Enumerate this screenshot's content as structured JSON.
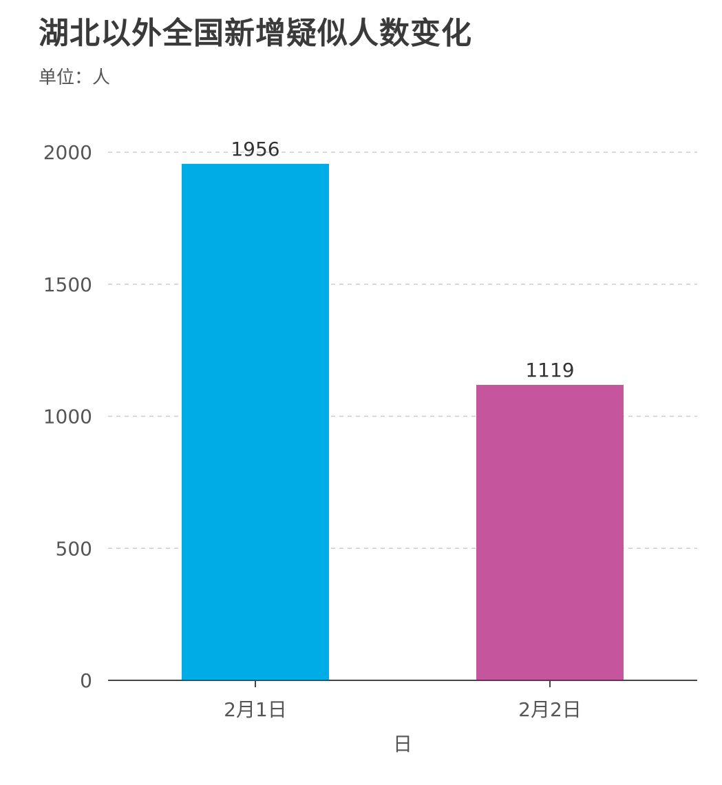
{
  "chart_data": {
    "type": "bar",
    "title": "湖北以外全国新增疑似人数变化",
    "subtitle": "单位：人",
    "xlabel": "日",
    "ylabel": "",
    "categories": [
      "2月1日",
      "2月2日"
    ],
    "values": [
      1956,
      1119
    ],
    "colors": [
      "#00ace6",
      "#c5559c"
    ],
    "ylim": [
      0,
      2000
    ],
    "yticks": [
      0,
      500,
      1000,
      1500,
      2000
    ],
    "grid": true,
    "legend": "none"
  }
}
